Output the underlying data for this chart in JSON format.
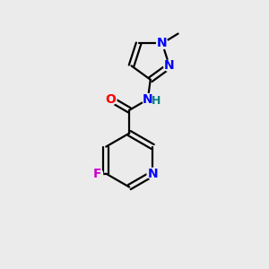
{
  "background_color": "#ebebeb",
  "bond_color": "#000000",
  "atom_colors": {
    "N": "#0000ff",
    "O": "#ff0000",
    "F": "#cc00cc",
    "NH": "#008080",
    "C": "#000000"
  },
  "figsize": [
    3.0,
    3.0
  ],
  "dpi": 100,
  "lw": 1.6,
  "fontsize": 10
}
